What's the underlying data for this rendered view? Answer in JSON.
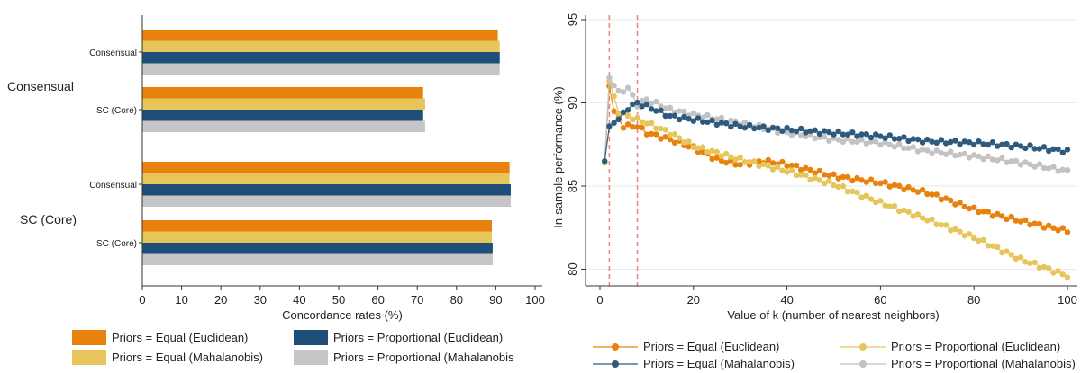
{
  "chart_data": [
    {
      "type": "bar",
      "orientation": "horizontal",
      "xlabel": "Concordance rates (%)",
      "xlim": [
        0,
        100
      ],
      "xticks": [
        0,
        10,
        20,
        30,
        40,
        50,
        60,
        70,
        80,
        90,
        100
      ],
      "group_labels": [
        "Consensual",
        "SC (Core)"
      ],
      "category_labels": [
        "Consensual",
        "SC (Core)",
        "Consensual",
        "SC (Core)"
      ],
      "series": [
        {
          "name": "Priors = Equal (Euclidean)",
          "color": "#e8820c",
          "values": [
            90.5,
            71.5,
            93.5,
            89.0
          ]
        },
        {
          "name": "Priors = Equal (Mahalanobis)",
          "color": "#e6c65a",
          "values": [
            91.0,
            72.0,
            93.5,
            89.0
          ]
        },
        {
          "name": "Priors = Proportional (Euclidean)",
          "color": "#1f4e79",
          "values": [
            91.0,
            71.5,
            93.8,
            89.2
          ]
        },
        {
          "name": "Priors = Proportional (Mahalanobis",
          "color": "#c6c6c6",
          "values": [
            91.0,
            72.0,
            93.8,
            89.2
          ]
        }
      ],
      "legend_position": "bottom"
    },
    {
      "type": "line",
      "xlabel": "Value of k (number of nearest neighbors)",
      "ylabel": "In-sample performance (%)",
      "xlim": [
        0,
        100
      ],
      "ylim": [
        79,
        95
      ],
      "xticks": [
        0,
        20,
        40,
        60,
        80,
        100
      ],
      "yticks": [
        80,
        85,
        90,
        95
      ],
      "vlines": [
        2,
        8
      ],
      "grid": true,
      "series": [
        {
          "name": "Priors = Equal (Euclidean)",
          "color": "#e8820c",
          "keypoints": [
            [
              1,
              86.4
            ],
            [
              2,
              91.0
            ],
            [
              3,
              89.5
            ],
            [
              5,
              88.6
            ],
            [
              8,
              88.6
            ],
            [
              10,
              88.2
            ],
            [
              15,
              87.8
            ],
            [
              20,
              87.3
            ],
            [
              25,
              86.6
            ],
            [
              30,
              86.3
            ],
            [
              35,
              86.5
            ],
            [
              40,
              86.3
            ],
            [
              50,
              85.6
            ],
            [
              60,
              85.2
            ],
            [
              70,
              84.6
            ],
            [
              80,
              83.6
            ],
            [
              90,
              82.9
            ],
            [
              100,
              82.3
            ]
          ]
        },
        {
          "name": "Priors = Proportional (Euclidean)",
          "color": "#e6c65a",
          "keypoints": [
            [
              1,
              86.4
            ],
            [
              2,
              91.3
            ],
            [
              4,
              89.5
            ],
            [
              6,
              89.2
            ],
            [
              8,
              89.0
            ],
            [
              10,
              88.8
            ],
            [
              15,
              88.2
            ],
            [
              20,
              87.4
            ],
            [
              30,
              86.6
            ],
            [
              40,
              85.9
            ],
            [
              50,
              85.1
            ],
            [
              60,
              84.0
            ],
            [
              70,
              83.0
            ],
            [
              80,
              81.9
            ],
            [
              90,
              80.6
            ],
            [
              100,
              79.6
            ]
          ]
        },
        {
          "name": "Priors = Equal (Mahalanobis)",
          "color": "#2e5a7d",
          "keypoints": [
            [
              1,
              86.5
            ],
            [
              2,
              88.6
            ],
            [
              4,
              89.0
            ],
            [
              6,
              89.7
            ],
            [
              8,
              90.0
            ],
            [
              10,
              89.8
            ],
            [
              15,
              89.2
            ],
            [
              20,
              89.0
            ],
            [
              30,
              88.6
            ],
            [
              40,
              88.4
            ],
            [
              50,
              88.2
            ],
            [
              60,
              88.0
            ],
            [
              70,
              87.7
            ],
            [
              80,
              87.6
            ],
            [
              90,
              87.4
            ],
            [
              100,
              87.1
            ]
          ]
        },
        {
          "name": "Priors = Proportional (Mahalanobis)",
          "color": "#c2c2c2",
          "keypoints": [
            [
              1,
              86.5
            ],
            [
              2,
              91.5
            ],
            [
              4,
              90.6
            ],
            [
              6,
              90.9
            ],
            [
              8,
              89.9
            ],
            [
              10,
              90.2
            ],
            [
              15,
              89.6
            ],
            [
              20,
              89.3
            ],
            [
              30,
              88.8
            ],
            [
              40,
              88.2
            ],
            [
              50,
              87.8
            ],
            [
              60,
              87.6
            ],
            [
              70,
              87.1
            ],
            [
              80,
              86.8
            ],
            [
              90,
              86.4
            ],
            [
              100,
              85.9
            ]
          ]
        }
      ],
      "legend_position": "bottom"
    }
  ]
}
